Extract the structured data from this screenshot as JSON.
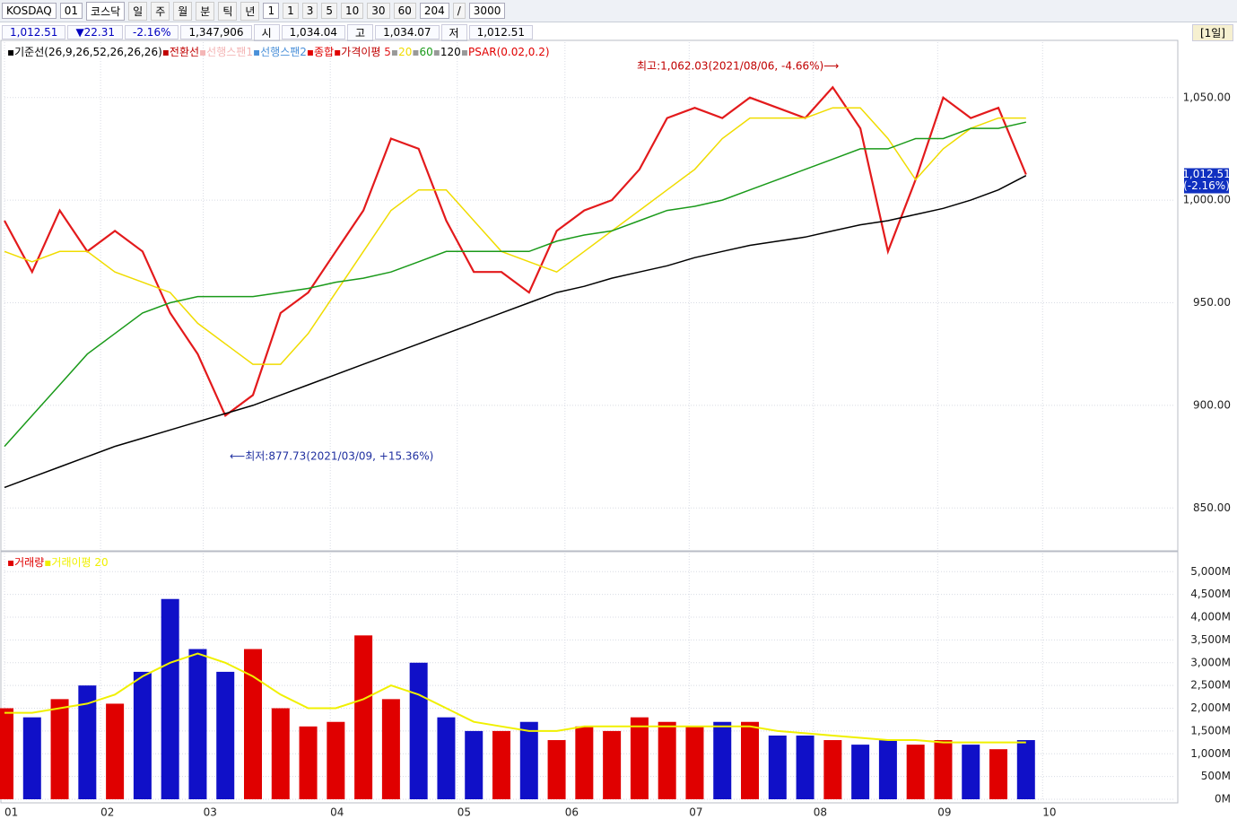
{
  "toolbar": {
    "market": "KOSDAQ",
    "code": "01",
    "name": "코스닥",
    "periods": [
      "일",
      "주",
      "월",
      "분",
      "틱",
      "년"
    ],
    "unit": "1",
    "minutes": [
      "1",
      "3",
      "5",
      "10",
      "30",
      "60"
    ],
    "count": "204",
    "sep": "/",
    "max": "3000"
  },
  "info": {
    "items": [
      "1,012.51",
      "▼22.31",
      "-2.16%",
      "1,347,906",
      "시",
      "1,034.04",
      "고",
      "1,034.07",
      "저",
      "1,012.51"
    ],
    "period": "[1일]"
  },
  "chart_data": [
    {
      "type": "line",
      "legend_extra": [
        {
          "name": "기준선(26,9,26,52,26,26,26)",
          "color": "#000000"
        },
        {
          "name": "전환선",
          "color": "#c00000"
        },
        {
          "name": "선행스팬1",
          "color": "#f4b6b6"
        },
        {
          "name": "선행스팬2",
          "color": "#4a90d9"
        },
        {
          "name": "종합",
          "color": "#e00000"
        }
      ],
      "ma_label": "가격이평",
      "psar_label": "PSAR(0.02,0.2)",
      "x": [
        0,
        5,
        10,
        15,
        20,
        25,
        30,
        35,
        40,
        45,
        50,
        55,
        60,
        65,
        70,
        75,
        80,
        85,
        90,
        95,
        100,
        105,
        110,
        115,
        120,
        125,
        130,
        135,
        140,
        145,
        150,
        155,
        160,
        165,
        170,
        175,
        180,
        185
      ],
      "series": [
        {
          "name": "5",
          "color": "#e31a1c",
          "values": [
            990,
            965,
            995,
            975,
            985,
            975,
            945,
            925,
            895,
            905,
            945,
            955,
            975,
            995,
            1030,
            1025,
            990,
            965,
            965,
            955,
            985,
            995,
            1000,
            1015,
            1040,
            1045,
            1040,
            1050,
            1045,
            1040,
            1055,
            1035,
            975,
            1010,
            1050,
            1040,
            1045,
            1012.51
          ]
        },
        {
          "name": "20",
          "color": "#f0dc00",
          "values": [
            975,
            970,
            975,
            975,
            965,
            960,
            955,
            940,
            930,
            920,
            920,
            935,
            955,
            975,
            995,
            1005,
            1005,
            990,
            975,
            970,
            965,
            975,
            985,
            995,
            1005,
            1015,
            1030,
            1040,
            1040,
            1040,
            1045,
            1045,
            1030,
            1010,
            1025,
            1035,
            1040,
            1040
          ]
        },
        {
          "name": "60",
          "color": "#1a9a1a",
          "values": [
            880,
            895,
            910,
            925,
            935,
            945,
            950,
            953,
            953,
            953,
            955,
            957,
            960,
            962,
            965,
            970,
            975,
            975,
            975,
            975,
            980,
            983,
            985,
            990,
            995,
            997,
            1000,
            1005,
            1010,
            1015,
            1020,
            1025,
            1025,
            1030,
            1030,
            1035,
            1035,
            1038
          ]
        },
        {
          "name": "120",
          "color": "#000000",
          "values": [
            860,
            865,
            870,
            875,
            880,
            884,
            888,
            892,
            896,
            900,
            905,
            910,
            915,
            920,
            925,
            930,
            935,
            940,
            945,
            950,
            955,
            958,
            962,
            965,
            968,
            972,
            975,
            978,
            980,
            982,
            985,
            988,
            990,
            993,
            996,
            1000,
            1005,
            1012
          ]
        }
      ],
      "annotations": {
        "high": "최고:1,062.03(2021/08/06, -4.66%)⟶",
        "low": "⟵최저:877.73(2021/03/09, +15.36%)"
      },
      "current": {
        "value": 1012.51,
        "label": "1,012.51",
        "change": "(-2.16%)"
      },
      "xlim": [
        0,
        212
      ],
      "xticks": [
        {
          "value": 0,
          "label": "01"
        },
        {
          "value": 17.4,
          "label": "02"
        },
        {
          "value": 36,
          "label": "03"
        },
        {
          "value": 59,
          "label": "04"
        },
        {
          "value": 82,
          "label": "05"
        },
        {
          "value": 101.5,
          "label": "06"
        },
        {
          "value": 124,
          "label": "07"
        },
        {
          "value": 146.5,
          "label": "08"
        },
        {
          "value": 169,
          "label": "09"
        },
        {
          "value": 188,
          "label": "10"
        }
      ],
      "ylim": [
        830,
        1077
      ],
      "yticks": [
        {
          "value": 850,
          "label": "850.00"
        },
        {
          "value": 900,
          "label": "900.00"
        },
        {
          "value": 950,
          "label": "950.00"
        },
        {
          "value": 1000,
          "label": "1,000.00"
        },
        {
          "value": 1050,
          "label": "1,050.00"
        }
      ],
      "grid": true
    },
    {
      "type": "bar",
      "x": [
        0,
        5,
        10,
        15,
        20,
        25,
        30,
        35,
        40,
        45,
        50,
        55,
        60,
        65,
        70,
        75,
        80,
        85,
        90,
        95,
        100,
        105,
        110,
        115,
        120,
        125,
        130,
        135,
        140,
        145,
        150,
        155,
        160,
        165,
        170,
        175,
        180,
        185
      ],
      "series": [
        {
          "name": "거래량",
          "colors": [
            "#e00000",
            "#1010c8"
          ],
          "values": [
            2000,
            1800,
            2200,
            2500,
            2100,
            2800,
            4400,
            3300,
            2800,
            3300,
            2000,
            1600,
            1700,
            3600,
            2200,
            3000,
            1800,
            1500,
            1500,
            1700,
            1300,
            1600,
            1500,
            1800,
            1700,
            1600,
            1700,
            1700,
            1400,
            1400,
            1300,
            1200,
            1300,
            1200,
            1300,
            1200,
            1100,
            1300
          ]
        },
        {
          "name": "거래이평 20",
          "color": "#f0f000",
          "values": [
            1900,
            1900,
            2000,
            2100,
            2300,
            2700,
            3000,
            3200,
            3000,
            2700,
            2300,
            2000,
            2000,
            2200,
            2500,
            2300,
            2000,
            1700,
            1600,
            1500,
            1500,
            1600,
            1600,
            1600,
            1600,
            1600,
            1600,
            1600,
            1500,
            1450,
            1400,
            1350,
            1300,
            1300,
            1250,
            1250,
            1250,
            1250
          ]
        }
      ],
      "xlim": [
        0,
        212
      ],
      "ylim": [
        0,
        5400
      ],
      "yticks": [
        {
          "value": 0,
          "label": "0M"
        },
        {
          "value": 500,
          "label": "500M"
        },
        {
          "value": 1000,
          "label": "1,000M"
        },
        {
          "value": 1500,
          "label": "1,500M"
        },
        {
          "value": 2000,
          "label": "2,000M"
        },
        {
          "value": 2500,
          "label": "2,500M"
        },
        {
          "value": 3000,
          "label": "3,000M"
        },
        {
          "value": 3500,
          "label": "3,500M"
        },
        {
          "value": 4000,
          "label": "4,000M"
        },
        {
          "value": 4500,
          "label": "4,500M"
        },
        {
          "value": 5000,
          "label": "5,000M"
        }
      ],
      "grid": true
    }
  ]
}
